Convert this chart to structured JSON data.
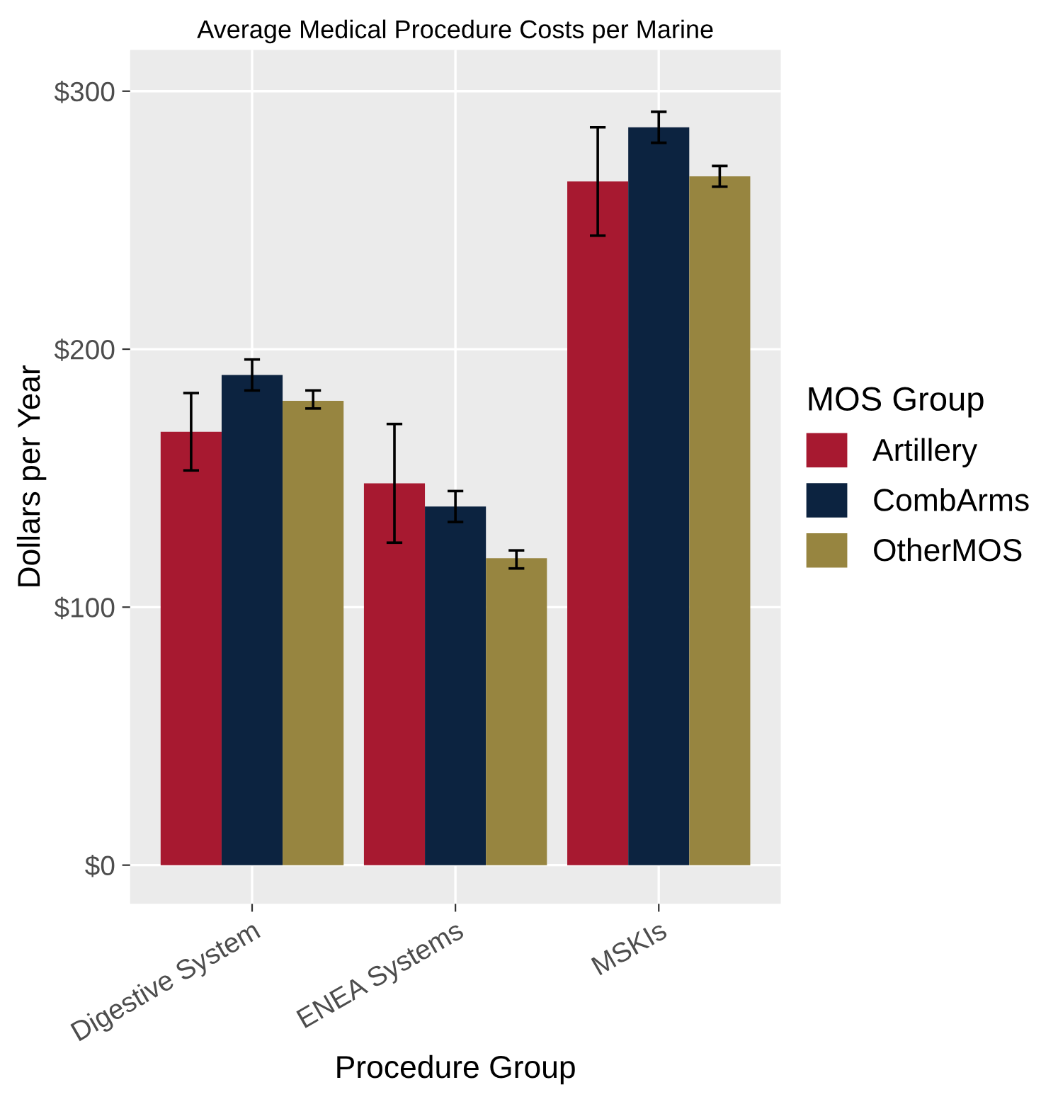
{
  "chart_data": {
    "type": "bar",
    "title": "Average Medical Procedure Costs per Marine",
    "xlabel": "Procedure Group",
    "ylabel": "Dollars per Year",
    "legend_title": "MOS Group",
    "categories": [
      "Digestive System",
      "ENEA Systems",
      "MSKIs"
    ],
    "series": [
      {
        "name": "Artillery",
        "color": "#a71930",
        "values": [
          168,
          148,
          265
        ],
        "errors": [
          [
            153,
            183
          ],
          [
            125,
            171
          ],
          [
            244,
            286
          ]
        ]
      },
      {
        "name": "CombArms",
        "color": "#0c2340",
        "values": [
          190,
          139,
          286
        ],
        "errors": [
          [
            184,
            196
          ],
          [
            133,
            145
          ],
          [
            280,
            292
          ]
        ]
      },
      {
        "name": "OtherMOS",
        "color": "#978540",
        "values": [
          180,
          119,
          267
        ],
        "errors": [
          [
            177,
            184
          ],
          [
            115,
            122
          ],
          [
            263,
            271
          ]
        ]
      }
    ],
    "ylim": [
      -15,
      316
    ],
    "yticks": [
      {
        "value": 0,
        "label": "$0"
      },
      {
        "value": 100,
        "label": "$100"
      },
      {
        "value": 200,
        "label": "$200"
      },
      {
        "value": 300,
        "label": "$300"
      }
    ],
    "grid": true,
    "legend": "right"
  }
}
